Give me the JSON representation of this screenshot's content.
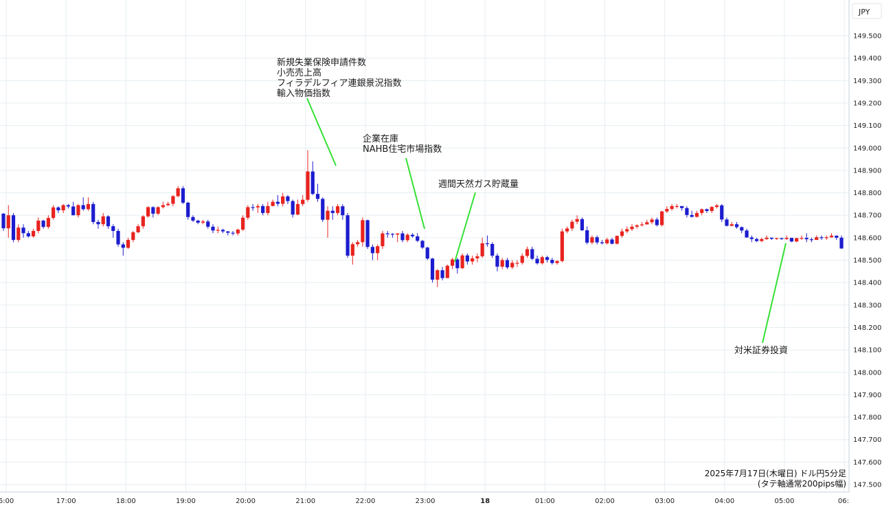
{
  "symbol": "JPY",
  "caption": {
    "line1": "2025年7月17日(木曜日) ドル円5分足",
    "line2": "(タテ軸通常200pips幅)"
  },
  "colors": {
    "up": "#e8231f",
    "down": "#1c1ccf",
    "annotation_line": "#33e033",
    "grid": "#e6eef2"
  },
  "chart_data": {
    "type": "candlestick",
    "timeframe": "5m",
    "x_ticks": [
      "6:00",
      "17:00",
      "18:00",
      "19:00",
      "20:00",
      "21:00",
      "22:00",
      "23:00",
      "18",
      "01:00",
      "02:00",
      "03:00",
      "04:00",
      "05:00",
      "06:"
    ],
    "y_ticks": [
      "149.500",
      "149.400",
      "149.300",
      "149.200",
      "149.100",
      "149.000",
      "148.900",
      "148.800",
      "148.700",
      "148.600",
      "148.500",
      "148.400",
      "148.300",
      "148.200",
      "148.100",
      "148.000",
      "147.900",
      "147.800",
      "147.700",
      "147.600",
      "147.500"
    ],
    "ylim": [
      147.5,
      149.5
    ],
    "grid": true,
    "candles": [
      [
        148.707,
        148.642,
        148.71,
        148.63
      ],
      [
        148.642,
        148.7,
        148.745,
        148.6
      ],
      [
        148.7,
        148.59,
        148.71,
        148.58
      ],
      [
        148.59,
        148.645,
        148.66,
        148.58
      ],
      [
        148.645,
        148.62,
        148.66,
        148.6
      ],
      [
        148.62,
        148.606,
        148.63,
        148.6
      ],
      [
        148.606,
        148.63,
        148.64,
        148.6
      ],
      [
        148.63,
        148.676,
        148.69,
        148.62
      ],
      [
        148.676,
        148.648,
        148.68,
        148.64
      ],
      [
        148.648,
        148.688,
        148.7,
        148.64
      ],
      [
        148.688,
        148.735,
        148.745,
        148.68
      ],
      [
        148.735,
        148.722,
        148.74,
        148.71
      ],
      [
        148.722,
        148.745,
        148.75,
        148.71
      ],
      [
        148.745,
        148.739,
        148.75,
        148.73
      ],
      [
        148.739,
        148.7,
        148.76,
        148.7
      ],
      [
        148.7,
        148.745,
        148.75,
        148.69
      ],
      [
        148.745,
        148.727,
        148.78,
        148.72
      ],
      [
        148.727,
        148.75,
        148.78,
        148.72
      ],
      [
        148.75,
        148.67,
        148.76,
        148.66
      ],
      [
        148.67,
        148.66,
        148.68,
        148.64
      ],
      [
        148.66,
        148.695,
        148.71,
        148.65
      ],
      [
        148.695,
        148.651,
        148.7,
        148.64
      ],
      [
        148.651,
        148.63,
        148.66,
        148.6
      ],
      [
        148.63,
        148.57,
        148.64,
        148.56
      ],
      [
        148.57,
        148.555,
        148.58,
        148.52
      ],
      [
        148.555,
        148.59,
        148.6,
        148.55
      ],
      [
        148.59,
        148.624,
        148.63,
        148.58
      ],
      [
        148.624,
        148.651,
        148.66,
        148.62
      ],
      [
        148.651,
        148.695,
        148.7,
        148.64
      ],
      [
        148.695,
        148.736,
        148.74,
        148.69
      ],
      [
        148.736,
        148.707,
        148.74,
        148.69
      ],
      [
        148.707,
        148.736,
        148.74,
        148.7
      ],
      [
        148.736,
        148.745,
        148.76,
        148.73
      ],
      [
        148.745,
        148.751,
        148.76,
        148.74
      ],
      [
        148.751,
        148.785,
        148.79,
        148.74
      ],
      [
        148.785,
        148.82,
        148.83,
        148.78
      ],
      [
        148.82,
        148.756,
        148.83,
        148.75
      ],
      [
        148.756,
        148.692,
        148.76,
        148.68
      ],
      [
        148.692,
        148.676,
        148.7,
        148.67
      ],
      [
        148.676,
        148.667,
        148.68,
        148.66
      ],
      [
        148.667,
        148.672,
        148.68,
        148.66
      ],
      [
        148.672,
        148.649,
        148.68,
        148.64
      ],
      [
        148.649,
        148.632,
        148.66,
        148.62
      ],
      [
        148.632,
        148.635,
        148.65,
        148.62
      ],
      [
        148.635,
        148.628,
        148.64,
        148.62
      ],
      [
        148.628,
        148.622,
        148.63,
        148.61
      ],
      [
        148.622,
        148.619,
        148.63,
        148.61
      ],
      [
        148.619,
        148.636,
        148.64,
        148.61
      ],
      [
        148.636,
        148.689,
        148.7,
        148.63
      ],
      [
        148.689,
        148.736,
        148.745,
        148.68
      ],
      [
        148.736,
        148.735,
        148.75,
        148.72
      ],
      [
        148.735,
        148.741,
        148.75,
        148.71
      ],
      [
        148.741,
        148.71,
        148.75,
        148.7
      ],
      [
        148.71,
        148.741,
        148.76,
        148.7
      ],
      [
        148.741,
        148.76,
        148.77,
        148.74
      ],
      [
        148.76,
        148.751,
        148.79,
        148.74
      ],
      [
        148.751,
        148.784,
        148.8,
        148.74
      ],
      [
        148.784,
        148.763,
        148.79,
        148.75
      ],
      [
        148.763,
        148.703,
        148.77,
        148.69
      ],
      [
        148.703,
        148.75,
        148.77,
        148.7
      ],
      [
        148.75,
        148.769,
        148.79,
        148.74
      ],
      [
        148.769,
        148.895,
        148.99,
        148.76
      ],
      [
        148.895,
        148.795,
        148.94,
        148.79
      ],
      [
        148.795,
        148.773,
        148.84,
        148.76
      ],
      [
        148.773,
        148.68,
        148.78,
        148.67
      ],
      [
        148.68,
        148.72,
        148.74,
        148.6
      ],
      [
        148.72,
        148.71,
        148.74,
        148.68
      ],
      [
        148.71,
        148.74,
        148.75,
        148.7
      ],
      [
        148.74,
        148.7,
        148.75,
        148.68
      ],
      [
        148.7,
        148.52,
        148.71,
        148.51
      ],
      [
        148.52,
        148.571,
        148.58,
        148.48
      ],
      [
        148.571,
        148.58,
        148.59,
        148.56
      ],
      [
        148.58,
        148.678,
        148.69,
        148.56
      ],
      [
        148.678,
        148.559,
        148.68,
        148.55
      ],
      [
        148.559,
        148.531,
        148.57,
        148.5
      ],
      [
        148.531,
        148.562,
        148.57,
        148.5
      ],
      [
        148.562,
        148.619,
        148.63,
        148.55
      ],
      [
        148.619,
        148.617,
        148.63,
        148.6
      ],
      [
        148.617,
        148.614,
        148.62,
        148.6
      ],
      [
        148.614,
        148.619,
        148.62,
        148.58
      ],
      [
        148.619,
        148.589,
        148.63,
        148.58
      ],
      [
        148.589,
        148.613,
        148.62,
        148.58
      ],
      [
        148.613,
        148.606,
        148.62,
        148.6
      ],
      [
        148.606,
        148.586,
        148.62,
        148.58
      ],
      [
        148.586,
        148.556,
        148.59,
        148.55
      ],
      [
        148.556,
        148.507,
        148.56,
        148.5
      ],
      [
        148.507,
        148.413,
        148.51,
        148.4
      ],
      [
        148.413,
        148.455,
        148.46,
        148.38
      ],
      [
        148.455,
        148.42,
        148.47,
        148.41
      ],
      [
        148.42,
        148.475,
        148.48,
        148.42
      ],
      [
        148.475,
        148.503,
        148.51,
        148.46
      ],
      [
        148.503,
        148.464,
        148.51,
        148.44
      ],
      [
        148.464,
        148.521,
        148.53,
        148.46
      ],
      [
        148.521,
        148.494,
        148.53,
        148.48
      ],
      [
        148.494,
        148.508,
        148.52,
        148.48
      ],
      [
        148.508,
        148.517,
        148.53,
        148.49
      ],
      [
        148.517,
        148.575,
        148.6,
        148.51
      ],
      [
        148.575,
        148.572,
        148.61,
        148.56
      ],
      [
        148.572,
        148.52,
        148.58,
        148.51
      ],
      [
        148.52,
        148.471,
        148.53,
        148.45
      ],
      [
        148.471,
        148.5,
        148.51,
        148.46
      ],
      [
        148.5,
        148.468,
        148.51,
        148.46
      ],
      [
        148.468,
        148.488,
        148.5,
        148.46
      ],
      [
        148.488,
        148.488,
        148.5,
        148.47
      ],
      [
        148.488,
        148.519,
        148.53,
        148.48
      ],
      [
        148.519,
        148.549,
        148.56,
        148.51
      ],
      [
        148.549,
        148.506,
        148.56,
        148.5
      ],
      [
        148.506,
        148.486,
        148.52,
        148.48
      ],
      [
        148.486,
        148.513,
        148.52,
        148.48
      ],
      [
        148.513,
        148.501,
        148.52,
        148.49
      ],
      [
        148.501,
        148.487,
        148.51,
        148.48
      ],
      [
        148.487,
        148.496,
        148.5,
        148.48
      ],
      [
        148.496,
        148.628,
        148.64,
        148.49
      ],
      [
        148.628,
        148.641,
        148.65,
        148.62
      ],
      [
        148.641,
        148.671,
        148.68,
        148.63
      ],
      [
        148.671,
        148.683,
        148.7,
        148.66
      ],
      [
        148.683,
        148.633,
        148.69,
        148.63
      ],
      [
        148.633,
        148.578,
        148.65,
        148.57
      ],
      [
        148.578,
        148.602,
        148.61,
        148.57
      ],
      [
        148.602,
        148.579,
        148.61,
        148.57
      ],
      [
        148.579,
        148.575,
        148.59,
        148.57
      ],
      [
        148.575,
        148.592,
        148.6,
        148.57
      ],
      [
        148.592,
        148.573,
        148.6,
        148.57
      ],
      [
        148.573,
        148.608,
        148.61,
        148.57
      ],
      [
        148.608,
        148.628,
        148.64,
        148.6
      ],
      [
        148.628,
        148.638,
        148.65,
        148.62
      ],
      [
        148.638,
        148.649,
        148.66,
        148.63
      ],
      [
        148.649,
        148.655,
        148.66,
        148.64
      ],
      [
        148.655,
        148.659,
        148.67,
        148.65
      ],
      [
        148.659,
        148.669,
        148.68,
        148.66
      ],
      [
        148.669,
        148.681,
        148.69,
        148.66
      ],
      [
        148.681,
        148.656,
        148.69,
        148.65
      ],
      [
        148.656,
        148.717,
        148.72,
        148.65
      ],
      [
        148.717,
        148.728,
        148.74,
        148.71
      ],
      [
        148.728,
        148.741,
        148.75,
        148.72
      ],
      [
        148.741,
        148.741,
        148.75,
        148.73
      ],
      [
        148.741,
        148.732,
        148.74,
        148.72
      ],
      [
        148.732,
        148.701,
        148.74,
        148.69
      ],
      [
        148.701,
        148.693,
        148.72,
        148.69
      ],
      [
        148.693,
        148.71,
        148.72,
        148.69
      ],
      [
        148.71,
        148.727,
        148.73,
        148.7
      ],
      [
        148.727,
        148.719,
        148.73,
        148.71
      ],
      [
        148.719,
        148.737,
        148.74,
        148.71
      ],
      [
        148.737,
        148.744,
        148.75,
        148.73
      ],
      [
        148.744,
        148.681,
        148.75,
        148.67
      ],
      [
        148.681,
        148.653,
        148.69,
        148.65
      ],
      [
        148.653,
        148.66,
        148.67,
        148.65
      ],
      [
        148.66,
        148.647,
        148.67,
        148.64
      ],
      [
        148.647,
        148.632,
        148.65,
        148.62
      ],
      [
        148.632,
        148.601,
        148.64,
        148.6
      ],
      [
        148.601,
        148.594,
        148.61,
        148.58
      ],
      [
        148.594,
        148.585,
        148.6,
        148.58
      ],
      [
        148.585,
        148.594,
        148.6,
        148.58
      ],
      [
        148.594,
        148.6,
        148.61,
        148.59
      ],
      [
        148.6,
        148.595,
        148.6,
        148.59
      ],
      [
        148.595,
        148.598,
        148.6,
        148.59
      ],
      [
        148.598,
        148.594,
        148.6,
        148.59
      ],
      [
        148.594,
        148.599,
        148.61,
        148.59
      ],
      [
        148.599,
        148.583,
        148.6,
        148.58
      ],
      [
        148.583,
        148.598,
        148.6,
        148.58
      ],
      [
        148.598,
        148.599,
        148.61,
        148.59
      ],
      [
        148.599,
        148.593,
        148.62,
        148.58
      ],
      [
        148.593,
        148.59,
        148.6,
        148.58
      ],
      [
        148.59,
        148.602,
        148.61,
        148.59
      ],
      [
        148.602,
        148.598,
        148.61,
        148.59
      ],
      [
        148.598,
        148.602,
        148.61,
        148.59
      ],
      [
        148.602,
        148.609,
        148.62,
        148.6
      ],
      [
        148.609,
        148.6,
        148.61,
        148.59
      ],
      [
        148.6,
        148.552,
        148.61,
        148.55
      ]
    ],
    "annotations": [
      {
        "lines": [
          "新規失業保険申請件数",
          "小売売上高",
          "フィラデルフィア連銀景況指数",
          "輸入物価指数"
        ]
      },
      {
        "lines": [
          "企業在庫",
          "NAHB住宅市場指数"
        ]
      },
      {
        "lines": [
          "週間天然ガス貯蔵量"
        ]
      },
      {
        "lines": [
          "対米証券投資"
        ]
      }
    ]
  }
}
